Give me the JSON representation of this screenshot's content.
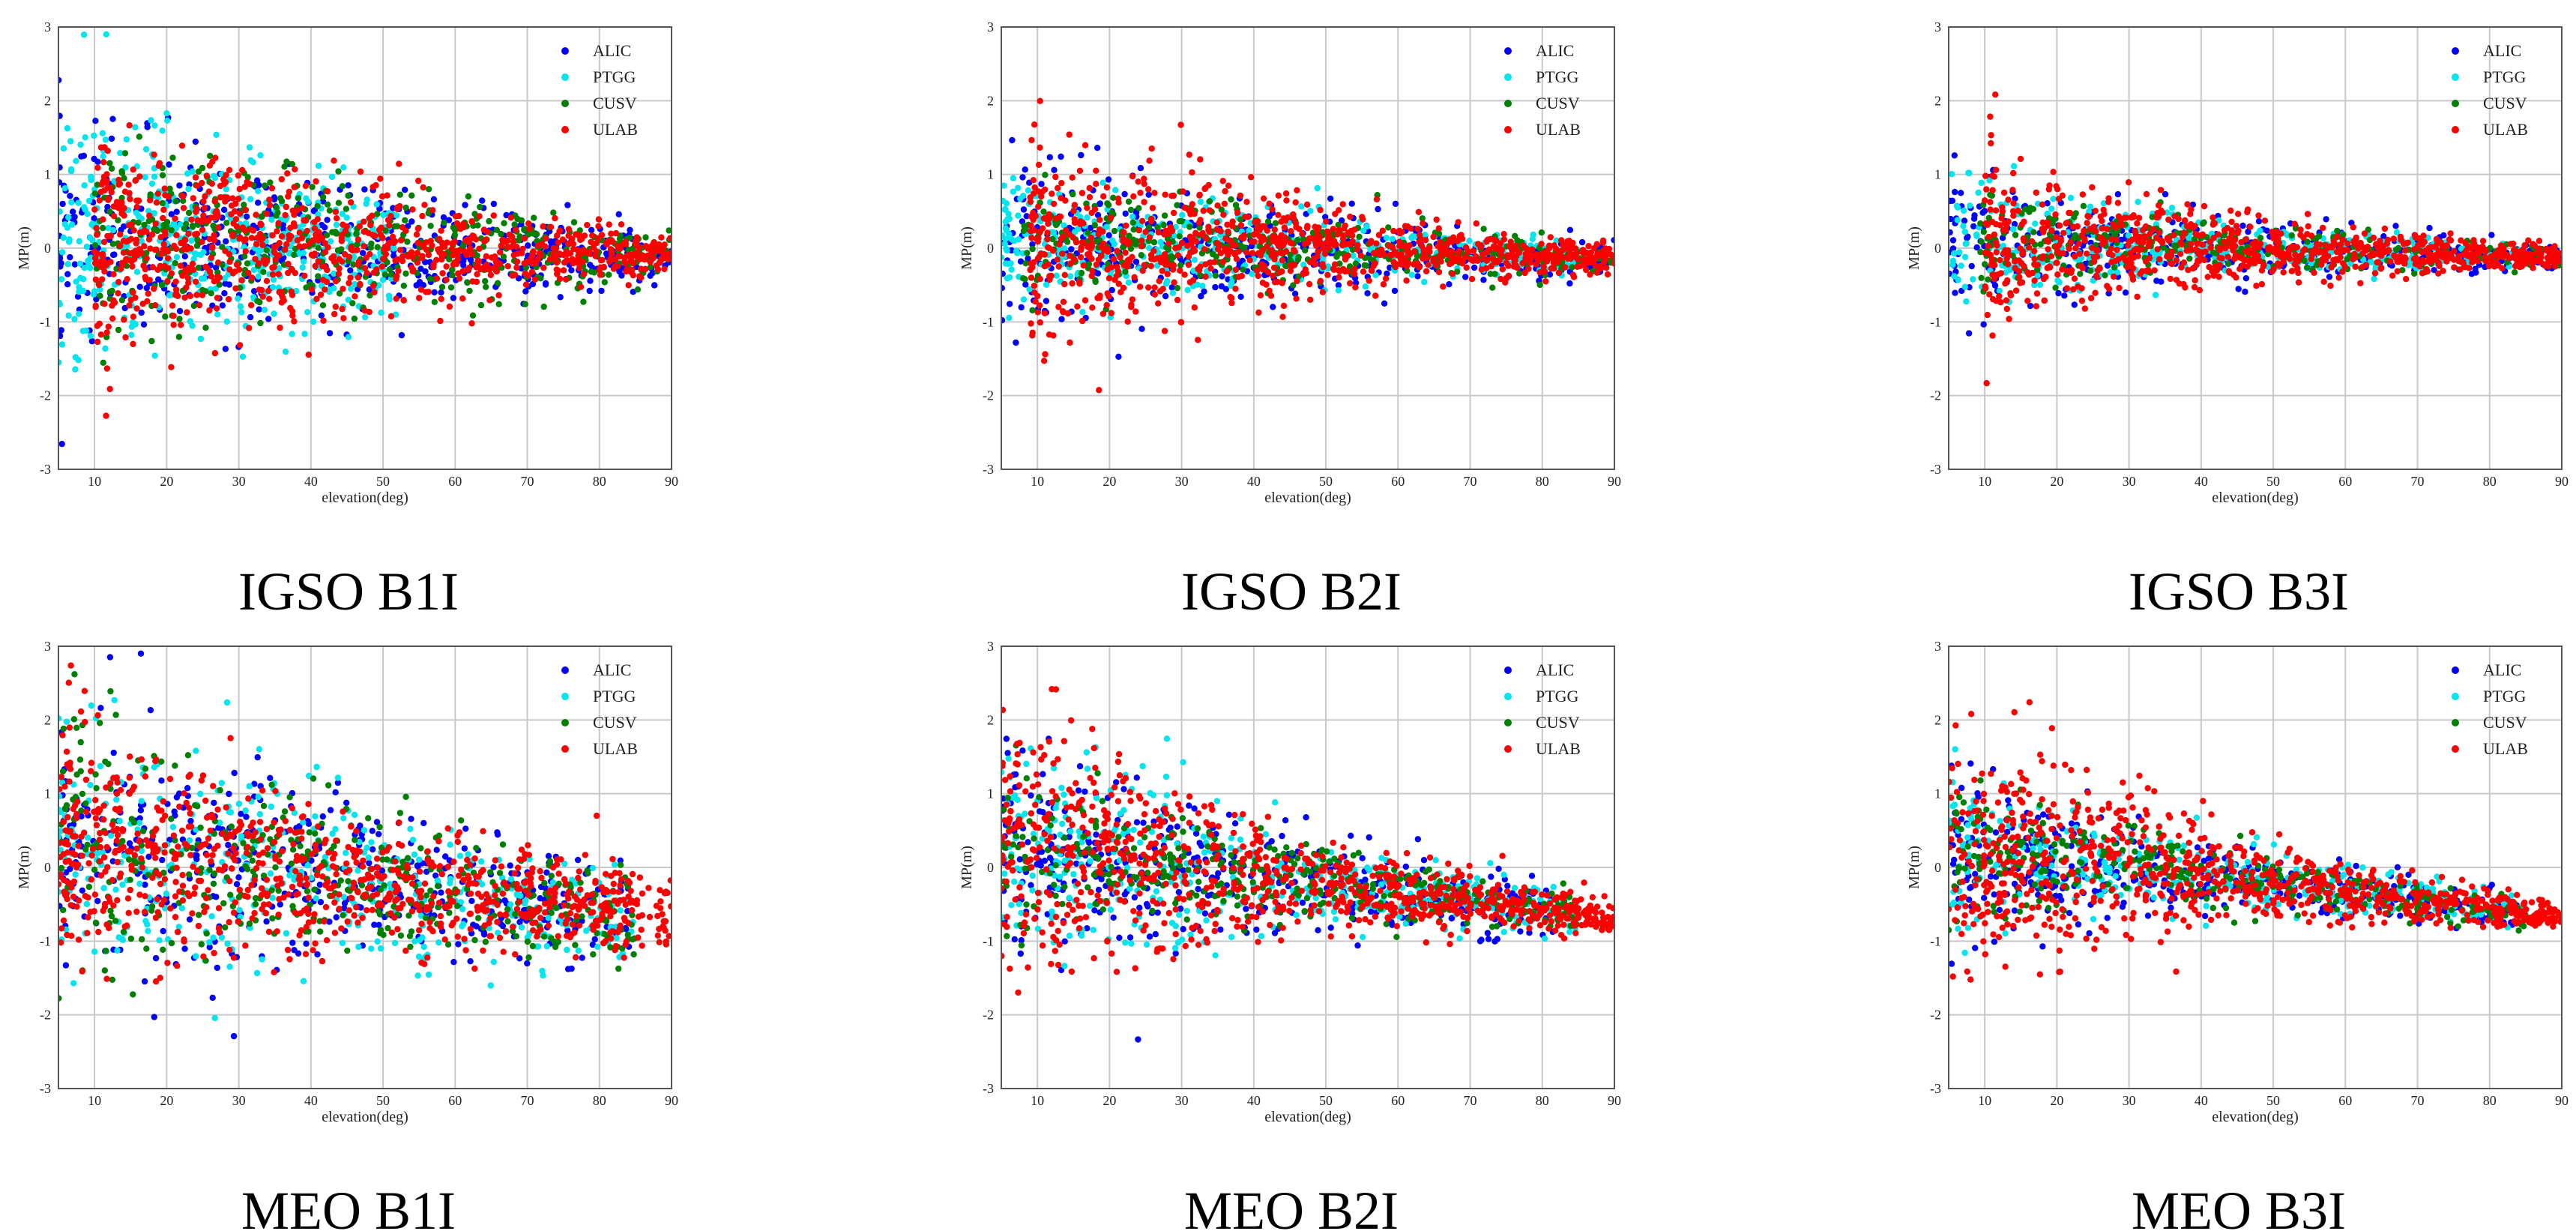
{
  "shared": {
    "xlabel": "elevation(deg)",
    "ylabel": "MP(m)",
    "xticks": [
      10,
      20,
      30,
      40,
      50,
      60,
      70,
      80,
      90
    ],
    "yticks": [
      -3,
      -2,
      -1,
      0,
      1,
      2,
      3
    ],
    "xlim": [
      5,
      90
    ],
    "ylim": [
      -3,
      3
    ],
    "legend": [
      {
        "name": "ALIC",
        "color": "#0000ff"
      },
      {
        "name": "PTGG",
        "color": "#00e5ee"
      },
      {
        "name": "CUSV",
        "color": "#008000"
      },
      {
        "name": "ULAB",
        "color": "#ff0000"
      }
    ]
  },
  "chart_data": [
    {
      "type": "scatter",
      "caption": "IGSO B1I",
      "xlabel": "elevation(deg)",
      "ylabel": "MP(m)",
      "xlim": [
        5,
        90
      ],
      "ylim": [
        -3,
        3
      ],
      "series": [
        {
          "name": "ALIC",
          "x_range": [
            5,
            90
          ],
          "spread": [
            [
              5,
              2.1
            ],
            [
              20,
              1.7
            ],
            [
              40,
              1.3
            ],
            [
              60,
              0.9
            ],
            [
              90,
              0.4
            ]
          ],
          "n": 500
        },
        {
          "name": "PTGG",
          "x_range": [
            5,
            52
          ],
          "spread": [
            [
              5,
              2.4
            ],
            [
              12,
              2.4
            ],
            [
              30,
              1.4
            ],
            [
              52,
              1.1
            ]
          ],
          "n": 450
        },
        {
          "name": "CUSV",
          "x_range": [
            10,
            90
          ],
          "spread": [
            [
              10,
              1.9
            ],
            [
              30,
              1.5
            ],
            [
              60,
              0.9
            ],
            [
              90,
              0.45
            ]
          ],
          "n": 450
        },
        {
          "name": "ULAB",
          "x_range": [
            10,
            90
          ],
          "spread": [
            [
              10,
              1.9
            ],
            [
              30,
              1.5
            ],
            [
              60,
              0.8
            ],
            [
              90,
              0.35
            ]
          ],
          "n": 900
        }
      ]
    },
    {
      "type": "scatter",
      "caption": "IGSO B2I",
      "xlabel": "elevation(deg)",
      "ylabel": "MP(m)",
      "xlim": [
        5,
        90
      ],
      "ylim": [
        -3,
        3
      ],
      "series": [
        {
          "name": "ALIC",
          "x_range": [
            5,
            90
          ],
          "spread": [
            [
              5,
              2.2
            ],
            [
              15,
              1.3
            ],
            [
              50,
              0.7
            ],
            [
              90,
              0.3
            ]
          ],
          "n": 450
        },
        {
          "name": "PTGG",
          "x_range": [
            5,
            85
          ],
          "spread": [
            [
              5,
              1.3
            ],
            [
              15,
              1.0
            ],
            [
              50,
              0.6
            ],
            [
              85,
              0.3
            ]
          ],
          "n": 420
        },
        {
          "name": "CUSV",
          "x_range": [
            8,
            90
          ],
          "spread": [
            [
              8,
              1.1
            ],
            [
              30,
              0.8
            ],
            [
              60,
              0.5
            ],
            [
              90,
              0.25
            ]
          ],
          "n": 350
        },
        {
          "name": "ULAB",
          "x_range": [
            9,
            90
          ],
          "spread": [
            [
              9,
              2.2
            ],
            [
              20,
              1.6
            ],
            [
              50,
              0.7
            ],
            [
              90,
              0.25
            ]
          ],
          "n": 900
        }
      ]
    },
    {
      "type": "scatter",
      "caption": "IGSO B3I",
      "xlabel": "elevation(deg)",
      "ylabel": "MP(m)",
      "xlim": [
        5,
        90
      ],
      "ylim": [
        -3,
        3
      ],
      "series": [
        {
          "name": "ALIC",
          "x_range": [
            5,
            90
          ],
          "spread": [
            [
              5,
              1.4
            ],
            [
              15,
              1.0
            ],
            [
              50,
              0.5
            ],
            [
              90,
              0.2
            ]
          ],
          "n": 400
        },
        {
          "name": "PTGG",
          "x_range": [
            5,
            85
          ],
          "spread": [
            [
              5,
              1.6
            ],
            [
              12,
              1.0
            ],
            [
              50,
              0.4
            ],
            [
              85,
              0.2
            ]
          ],
          "n": 400
        },
        {
          "name": "CUSV",
          "x_range": [
            9,
            90
          ],
          "spread": [
            [
              9,
              0.9
            ],
            [
              30,
              0.6
            ],
            [
              60,
              0.35
            ],
            [
              90,
              0.15
            ]
          ],
          "n": 300
        },
        {
          "name": "ULAB",
          "x_range": [
            10,
            90
          ],
          "spread": [
            [
              10,
              2.0
            ],
            [
              15,
              1.2
            ],
            [
              50,
              0.5
            ],
            [
              90,
              0.2
            ]
          ],
          "n": 850
        }
      ]
    },
    {
      "type": "scatter",
      "caption": "MEO B1I",
      "xlabel": "elevation(deg)",
      "ylabel": "MP(m)",
      "xlim": [
        5,
        90
      ],
      "ylim": [
        -3,
        3
      ],
      "series": [
        {
          "name": "ALIC",
          "x_range": [
            5,
            85
          ],
          "spread": [
            [
              5,
              2.2
            ],
            [
              20,
              2.0
            ],
            [
              50,
              1.3
            ],
            [
              85,
              1.0
            ]
          ],
          "n": 450
        },
        {
          "name": "PTGG",
          "x_range": [
            5,
            85
          ],
          "spread": [
            [
              5,
              2.7
            ],
            [
              20,
              2.0
            ],
            [
              55,
              1.3
            ],
            [
              85,
              0.9
            ]
          ],
          "n": 400
        },
        {
          "name": "CUSV",
          "x_range": [
            5,
            85
          ],
          "spread": [
            [
              5,
              2.4
            ],
            [
              25,
              1.6
            ],
            [
              60,
              1.0
            ],
            [
              85,
              0.7
            ]
          ],
          "n": 400
        },
        {
          "name": "ULAB",
          "x_range": [
            5,
            90
          ],
          "spread": [
            [
              5,
              2.4
            ],
            [
              20,
              1.9
            ],
            [
              50,
              1.0
            ],
            [
              90,
              0.7
            ]
          ],
          "n": 850
        }
      ]
    },
    {
      "type": "scatter",
      "caption": "MEO B2I",
      "xlabel": "elevation(deg)",
      "ylabel": "MP(m)",
      "xlim": [
        5,
        90
      ],
      "ylim": [
        -3,
        3
      ],
      "series": [
        {
          "name": "ALIC",
          "x_range": [
            5,
            82
          ],
          "spread": [
            [
              5,
              2.0
            ],
            [
              20,
              1.4
            ],
            [
              50,
              0.8
            ],
            [
              82,
              0.5
            ]
          ],
          "n": 450
        },
        {
          "name": "PTGG",
          "x_range": [
            5,
            85
          ],
          "spread": [
            [
              5,
              1.7
            ],
            [
              20,
              1.9
            ],
            [
              50,
              0.7
            ],
            [
              85,
              0.4
            ]
          ],
          "n": 400
        },
        {
          "name": "CUSV",
          "x_range": [
            5,
            85
          ],
          "spread": [
            [
              5,
              1.5
            ],
            [
              25,
              1.0
            ],
            [
              60,
              0.6
            ],
            [
              85,
              0.35
            ]
          ],
          "n": 380
        },
        {
          "name": "ULAB",
          "x_range": [
            5,
            90
          ],
          "spread": [
            [
              5,
              2.0
            ],
            [
              15,
              2.0
            ],
            [
              50,
              0.7
            ],
            [
              90,
              0.3
            ]
          ],
          "n": 850
        }
      ]
    },
    {
      "type": "scatter",
      "caption": "MEO B3I",
      "xlabel": "elevation(deg)",
      "ylabel": "MP(m)",
      "xlim": [
        5,
        90
      ],
      "ylim": [
        -3,
        3
      ],
      "series": [
        {
          "name": "ALIC",
          "x_range": [
            5,
            85
          ],
          "spread": [
            [
              5,
              1.9
            ],
            [
              20,
              1.0
            ],
            [
              50,
              0.5
            ],
            [
              85,
              0.3
            ]
          ],
          "n": 420
        },
        {
          "name": "PTGG",
          "x_range": [
            5,
            85
          ],
          "spread": [
            [
              5,
              1.3
            ],
            [
              20,
              0.9
            ],
            [
              50,
              0.5
            ],
            [
              85,
              0.3
            ]
          ],
          "n": 380
        },
        {
          "name": "CUSV",
          "x_range": [
            5,
            85
          ],
          "spread": [
            [
              5,
              1.2
            ],
            [
              25,
              0.8
            ],
            [
              60,
              0.4
            ],
            [
              85,
              0.25
            ]
          ],
          "n": 350
        },
        {
          "name": "ULAB",
          "x_range": [
            5,
            90
          ],
          "spread": [
            [
              5,
              2.0
            ],
            [
              15,
              2.1
            ],
            [
              50,
              0.6
            ],
            [
              90,
              0.25
            ]
          ],
          "n": 850
        }
      ]
    }
  ]
}
